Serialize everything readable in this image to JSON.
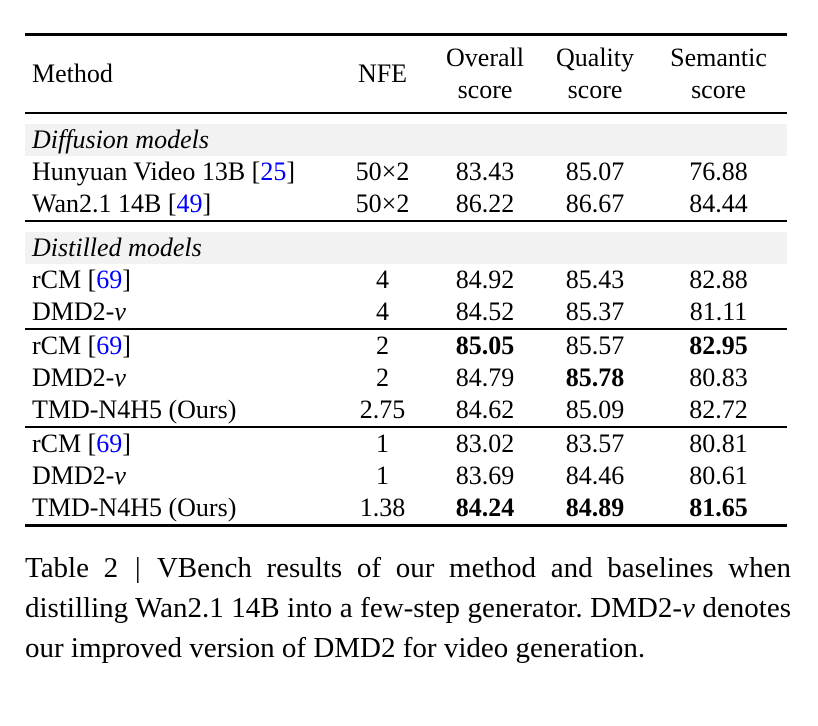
{
  "colors": {
    "citation_blue": "#0000ff",
    "row_shade": "#f2f2f2",
    "text": "#000000",
    "background": "#ffffff"
  },
  "table": {
    "header": {
      "method": "Method",
      "nfe": "NFE",
      "overall": [
        "Overall",
        "score"
      ],
      "quality": [
        "Quality",
        "score"
      ],
      "semantic": [
        "Semantic",
        "score"
      ]
    },
    "sections": [
      {
        "label": "Diffusion models",
        "groups": [
          {
            "rows": [
              {
                "method": "Hunyuan Video 13B",
                "cite": "25",
                "nfe": "50×2",
                "overall": "83.43",
                "quality": "85.07",
                "semantic": "76.88",
                "bold": []
              },
              {
                "method": "Wan2.1 14B",
                "cite": "49",
                "nfe": "50×2",
                "overall": "86.22",
                "quality": "86.67",
                "semantic": "84.44",
                "bold": []
              }
            ]
          }
        ]
      },
      {
        "label": "Distilled models",
        "groups": [
          {
            "rows": [
              {
                "method": "rCM",
                "cite": "69",
                "nfe": "4",
                "overall": "84.92",
                "quality": "85.43",
                "semantic": "82.88",
                "bold": []
              },
              {
                "method": "DMD2-",
                "italic": "v",
                "nfe": "4",
                "overall": "84.52",
                "quality": "85.37",
                "semantic": "81.11",
                "bold": []
              }
            ]
          },
          {
            "rows": [
              {
                "method": "rCM",
                "cite": "69",
                "nfe": "2",
                "overall": "85.05",
                "quality": "85.57",
                "semantic": "82.95",
                "bold": [
                  "overall",
                  "semantic"
                ]
              },
              {
                "method": "DMD2-",
                "italic": "v",
                "nfe": "2",
                "overall": "84.79",
                "quality": "85.78",
                "semantic": "80.83",
                "bold": [
                  "quality"
                ]
              },
              {
                "method": "TMD-N4H5 (Ours)",
                "nfe": "2.75",
                "overall": "84.62",
                "quality": "85.09",
                "semantic": "82.72",
                "bold": []
              }
            ]
          },
          {
            "rows": [
              {
                "method": "rCM",
                "cite": "69",
                "nfe": "1",
                "overall": "83.02",
                "quality": "83.57",
                "semantic": "80.81",
                "bold": []
              },
              {
                "method": "DMD2-",
                "italic": "v",
                "nfe": "1",
                "overall": "83.69",
                "quality": "84.46",
                "semantic": "80.61",
                "bold": []
              },
              {
                "method": "TMD-N4H5 (Ours)",
                "nfe": "1.38",
                "overall": "84.24",
                "quality": "84.89",
                "semantic": "81.65",
                "bold": [
                  "overall",
                  "quality",
                  "semantic"
                ]
              }
            ]
          }
        ]
      }
    ]
  },
  "caption": {
    "label": "Table 2",
    "separator": "|",
    "text_before_italic": "VBench results of our method and baselines when distilling Wan2.1 14B into a few-step generator. DMD2-",
    "italic": "v",
    "text_after_italic": " denotes our improved version of DMD2 for video generation."
  }
}
